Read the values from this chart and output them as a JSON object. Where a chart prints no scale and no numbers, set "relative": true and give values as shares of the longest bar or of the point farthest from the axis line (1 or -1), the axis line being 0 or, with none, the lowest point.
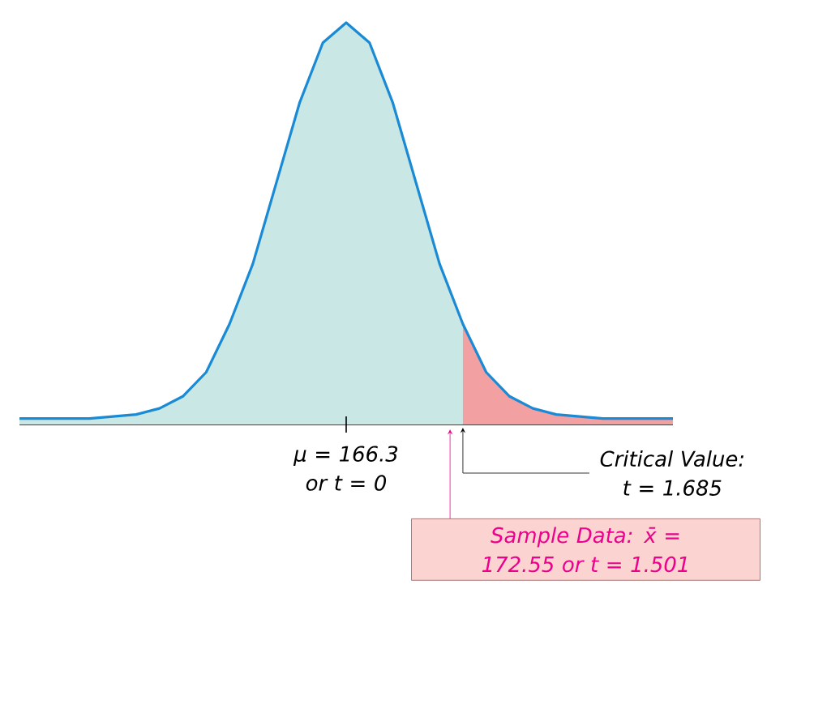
{
  "chart_data": {
    "type": "area",
    "relative": true,
    "categories": [
      null,
      null,
      null,
      null,
      null,
      null,
      null,
      null,
      null,
      null,
      null,
      null,
      null,
      null,
      null,
      null,
      null,
      null,
      null,
      null,
      null,
      null,
      null,
      null,
      null,
      null,
      null,
      null,
      null
    ],
    "series": [
      {
        "color": "#c8e7e5",
        "values": [
          0.015,
          0.015,
          0.015,
          0.015,
          0.02,
          0.025,
          0.04,
          0.07,
          0.13,
          0.25,
          0.4,
          0.6,
          0.8,
          0.95,
          1,
          0.95,
          0.8,
          0.6,
          0.4,
          0.25,
          null,
          null,
          null,
          null,
          null,
          null,
          null,
          null,
          null
        ]
      },
      {
        "color": "#f2a0a2",
        "values": [
          null,
          null,
          null,
          null,
          null,
          null,
          null,
          null,
          null,
          null,
          null,
          null,
          null,
          null,
          null,
          null,
          null,
          null,
          null,
          0.25,
          0.13,
          0.07,
          0.04,
          0.025,
          0.02,
          0.015,
          0.015,
          0.015,
          0.015
        ]
      },
      {
        "type": "line",
        "color": "#1a8ad4",
        "values": [
          0.015,
          0.015,
          0.015,
          0.015,
          0.02,
          0.025,
          0.04,
          0.07,
          0.13,
          0.25,
          0.4,
          0.6,
          0.8,
          0.95,
          1,
          0.95,
          0.8,
          0.6,
          0.4,
          0.25,
          0.13,
          0.07,
          0.04,
          0.025,
          0.02,
          0.015,
          0.015,
          0.015,
          0.015
        ]
      }
    ],
    "annotations": [
      "μ = 166.3 or t = 0",
      "Critical Value: t = 1.685",
      "Sample Data: x̄ = 172.55 or t = 1.501"
    ]
  }
}
